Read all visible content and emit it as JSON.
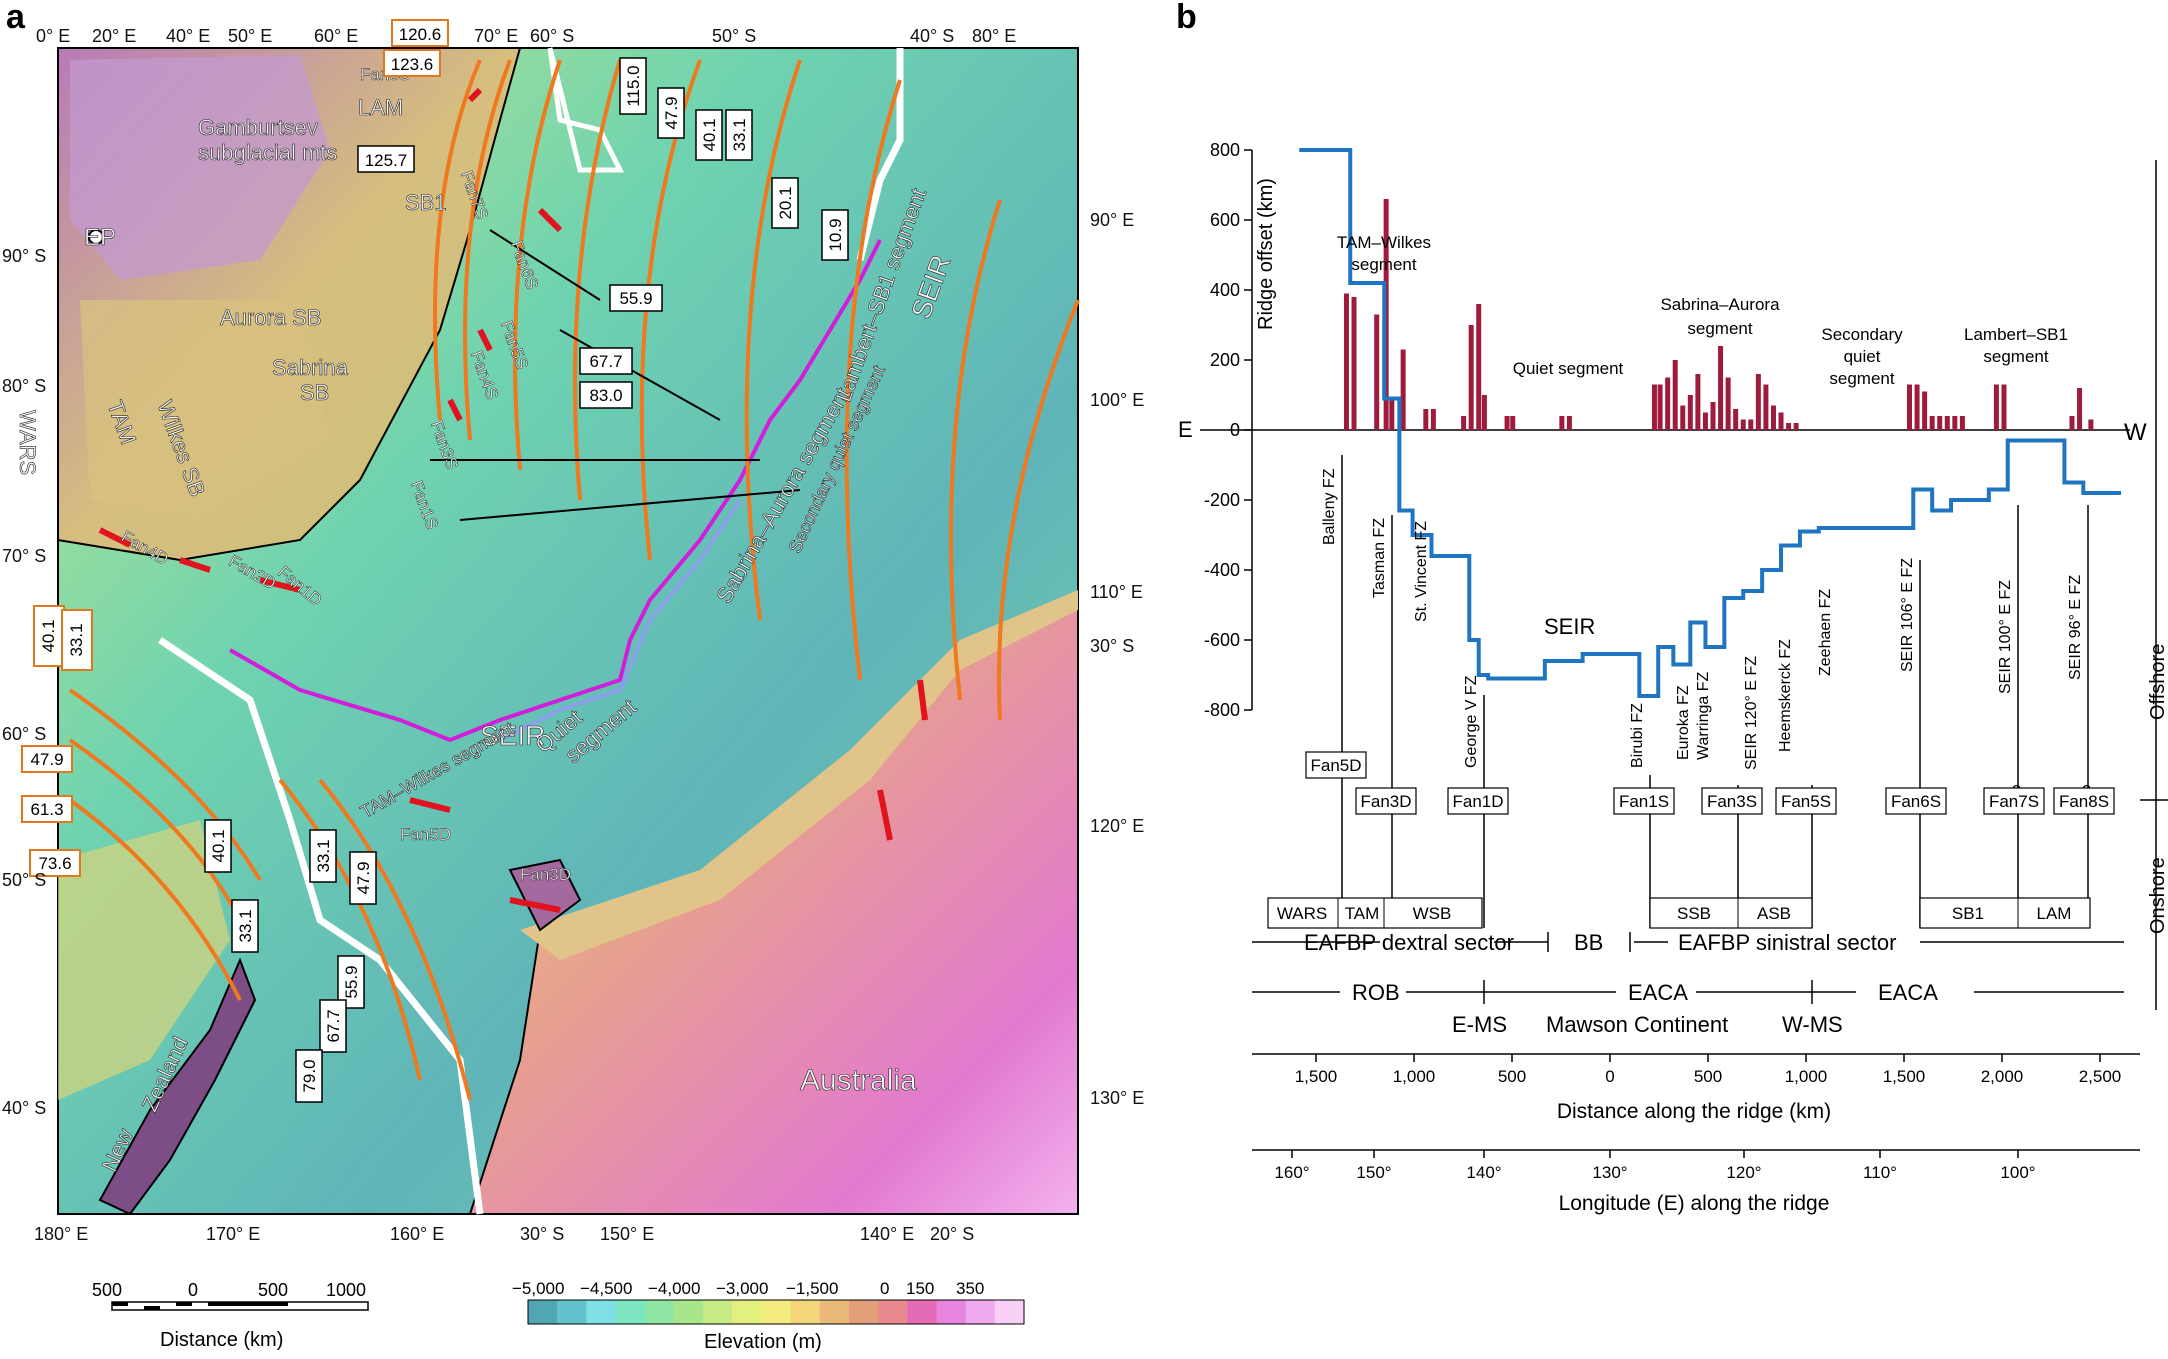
{
  "panel_a": {
    "letter": "a",
    "top_coords": [
      "0° E",
      "20° E",
      "40° E",
      "50° E",
      "60° E",
      "70° E",
      "60° S",
      "50° S",
      "40° S",
      "80° E"
    ],
    "left_coords": [
      "90° S",
      "80° S",
      "70° S",
      "60° S",
      "50° S",
      "40° S"
    ],
    "right_coords": [
      "90° E",
      "100° E",
      "110° E",
      "30° S",
      "120° E",
      "130° E"
    ],
    "bottom_coords": [
      "180° E",
      "170° E",
      "160° E",
      "30° S",
      "150° E",
      "140° E",
      "20° S"
    ],
    "map_labels": {
      "ep": "EP",
      "gamburtsev1": "Gamburtsev",
      "gamburtsev2": "subglacial mts",
      "aurora_sb": "Aurora SB",
      "sabrina1": "Sabrina",
      "sabrina2": "SB",
      "wars": "WARS",
      "tam": "TAM",
      "wilkes": "Wilkes SB",
      "sb1": "SB1",
      "lam": "LAM",
      "seir1": "SEIR",
      "seir2": "SEIR",
      "australia": "Australia",
      "new": "New",
      "zealand": "Zealand",
      "quiet": "Quiet",
      "segment": "segment",
      "sabrina_aurora": "Sabrina–Aurora segment",
      "lambert_sb1": "Lambert–SB1 segment",
      "secondary_quiet": "Secondary quiet segment",
      "tam_wilkes": "TAM–Wilkes segment"
    },
    "fans": [
      "Fan8S",
      "Fan7S",
      "Fan6S",
      "Fan5S",
      "Fan4S",
      "Fan3S",
      "Fan1S",
      "Fan1D",
      "Fan2D",
      "Fan3D",
      "Fan4D",
      "Fan5D"
    ],
    "age_boxes_orange": [
      "120.6",
      "123.6",
      "40.1",
      "33.1",
      "47.9",
      "61.3",
      "73.6"
    ],
    "age_boxes_white": [
      "125.7",
      "115.0",
      "47.9",
      "40.1",
      "33.1",
      "20.1",
      "10.9",
      "55.9",
      "67.7",
      "83.0",
      "40.1",
      "33.1",
      "33.1",
      "47.9",
      "55.9",
      "67.7",
      "79.0"
    ],
    "scale_bar": {
      "ticks": [
        "500",
        "0",
        "500",
        "1000"
      ],
      "label": "Distance (km)"
    },
    "elevation_bar": {
      "ticks": [
        "−5,000",
        "−4,500",
        "−4,000",
        "−3,000",
        "−1,500",
        "0",
        "150",
        "350"
      ],
      "label": "Elevation (m)",
      "colors": [
        "#4fa7b3",
        "#62c3cf",
        "#7de0e2",
        "#7ce6c0",
        "#8fe6a4",
        "#a8e68c",
        "#c8ec86",
        "#e4f07e",
        "#f4ec7c",
        "#f3d57a",
        "#eab978",
        "#e2a07a",
        "#e98a8e",
        "#e56bb6",
        "#e784df",
        "#f0a9ee",
        "#f8d0f6"
      ]
    }
  },
  "panel_b": {
    "letter": "b",
    "y_axis_label": "Ridge offset (km)",
    "side_e": "E",
    "side_w": "W",
    "offshore": "Offshore",
    "onshore": "Onshore",
    "seir_label": "SEIR",
    "segments": [
      "TAM–Wilkes",
      "segment",
      "Quiet segment",
      "Sabrina–Aurora",
      "segment",
      "Secondary",
      "quiet",
      "segment",
      "Lambert–SB1",
      "segment"
    ],
    "fz_labels": [
      "Balleny FZ",
      "Tasman FZ",
      "St. Vincent FZ",
      "George V FZ",
      "Birubi FZ",
      "Euroka FZ",
      "Warringa FZ",
      "SEIR 120° E FZ",
      "Heemskerck FZ",
      "Zeehaen FZ",
      "SEIR 106° E FZ",
      "SEIR 100° E FZ",
      "SEIR 96° E FZ"
    ],
    "fan_boxes": [
      "Fan5D",
      "Fan3D",
      "Fan1D",
      "Fan1S",
      "Fan3S",
      "Fan5S",
      "Fan6S",
      "Fan7S",
      "Fan8S"
    ],
    "question": "?",
    "basins": [
      "WARS",
      "TAM",
      "WSB",
      "SSB",
      "ASB",
      "SB1",
      "LAM"
    ],
    "sector_dextral": "EAFBP dextral sector",
    "sector_bb": "BB",
    "sector_sinistral": "EAFBP sinistral sector",
    "rob": "ROB",
    "eaca1": "EACA",
    "eaca2": "EACA",
    "e_ms": "E-MS",
    "mawson": "Mawson Continent",
    "w_ms": "W-MS",
    "distance_label": "Distance along the ridge (km)",
    "longitude_label": "Longitude (E) along the ridge",
    "distance_ticks": [
      "1,500",
      "1,000",
      "500",
      "0",
      "500",
      "1,000",
      "1,500",
      "2,000",
      "2,500"
    ],
    "longitude_ticks": [
      "160°",
      "150°",
      "140°",
      "130°",
      "120°",
      "110°",
      "100°"
    ]
  },
  "chart_data": {
    "type": "line",
    "ylabel": "Ridge offset (km)",
    "xlabel": "Distance along the ridge (km)",
    "ylim": [
      -800,
      800
    ],
    "yticks": [
      800,
      600,
      400,
      200,
      0,
      -200,
      -400,
      -600,
      -800
    ],
    "series": [
      {
        "name": "SEIR",
        "x": [
          -1650,
          -1380,
          -1380,
          -1200,
          -1200,
          -1120,
          -1120,
          -1050,
          -1050,
          -950,
          -950,
          -750,
          -750,
          -700,
          -700,
          -650,
          -650,
          -350,
          -350,
          -150,
          -150,
          150,
          150,
          250,
          250,
          330,
          330,
          420,
          420,
          500,
          500,
          600,
          600,
          700,
          700,
          800,
          800,
          900,
          900,
          1000,
          1000,
          1100,
          1100,
          1600,
          1600,
          1700,
          1700,
          1800,
          1800,
          2000,
          2000,
          2100,
          2100,
          2400,
          2400,
          2500,
          2500,
          2700,
          2700
        ],
        "y": [
          800,
          800,
          420,
          420,
          90,
          90,
          -230,
          -230,
          -300,
          -300,
          -360,
          -360,
          -600,
          -600,
          -700,
          -700,
          -710,
          -710,
          -660,
          -660,
          -640,
          -640,
          -760,
          -760,
          -620,
          -620,
          -670,
          -670,
          -550,
          -550,
          -620,
          -620,
          -480,
          -480,
          -460,
          -460,
          -400,
          -400,
          -330,
          -330,
          -290,
          -290,
          -280,
          -280,
          -170,
          -170,
          -230,
          -230,
          -200,
          -200,
          -170,
          -170,
          -30,
          -30,
          -150,
          -150,
          -180,
          -180,
          -180
        ]
      },
      {
        "name": "bars",
        "type": "bar",
        "x": [
          -1400,
          -1360,
          -1240,
          -1190,
          -1160,
          -1100,
          -980,
          -940,
          -780,
          -740,
          -700,
          -670,
          -550,
          -520,
          -260,
          -220,
          -30,
          0,
          230,
          260,
          300,
          340,
          380,
          420,
          460,
          500,
          540,
          580,
          620,
          660,
          700,
          740,
          780,
          820,
          860,
          900,
          940,
          980,
          1020,
          1080,
          1120,
          1440,
          1580,
          1620,
          1660,
          1700,
          1740,
          1780,
          1820,
          1860,
          1900,
          1940,
          2040,
          2080,
          2440,
          2480,
          2540
        ],
        "y": [
          390,
          380,
          330,
          660,
          90,
          230,
          60,
          60,
          40,
          300,
          360,
          100,
          40,
          40,
          40,
          40,
          0,
          0,
          130,
          130,
          150,
          200,
          70,
          100,
          160,
          50,
          80,
          240,
          150,
          60,
          30,
          30,
          160,
          130,
          70,
          50,
          20,
          20,
          0,
          0,
          0,
          0,
          130,
          130,
          110,
          40,
          40,
          40,
          40,
          40,
          0,
          0,
          130,
          130,
          40,
          120,
          30
        ]
      }
    ]
  }
}
